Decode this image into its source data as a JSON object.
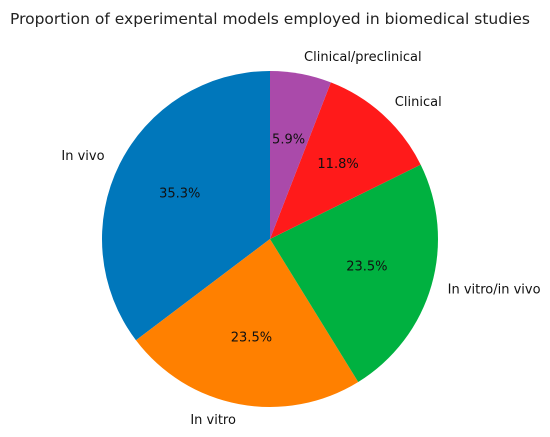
{
  "chart_data": {
    "type": "pie",
    "title": "Proportion of experimental models employed in biomedical studies",
    "labels": [
      "In vivo",
      "In vitro",
      "In vitro/in vivo",
      "Clinical",
      "Clinical/preclinical"
    ],
    "values": [
      35.3,
      23.5,
      23.5,
      11.8,
      5.9
    ],
    "percent_labels": [
      "35.3%",
      "23.5%",
      "23.5%",
      "11.8%",
      "5.9%"
    ],
    "colors": [
      "#0077bb",
      "#ff8000",
      "#00b140",
      "#ff1a1a",
      "#aa4aaa"
    ],
    "start_angle_deg": 90,
    "direction": "counterclockwise",
    "legend": "none"
  }
}
